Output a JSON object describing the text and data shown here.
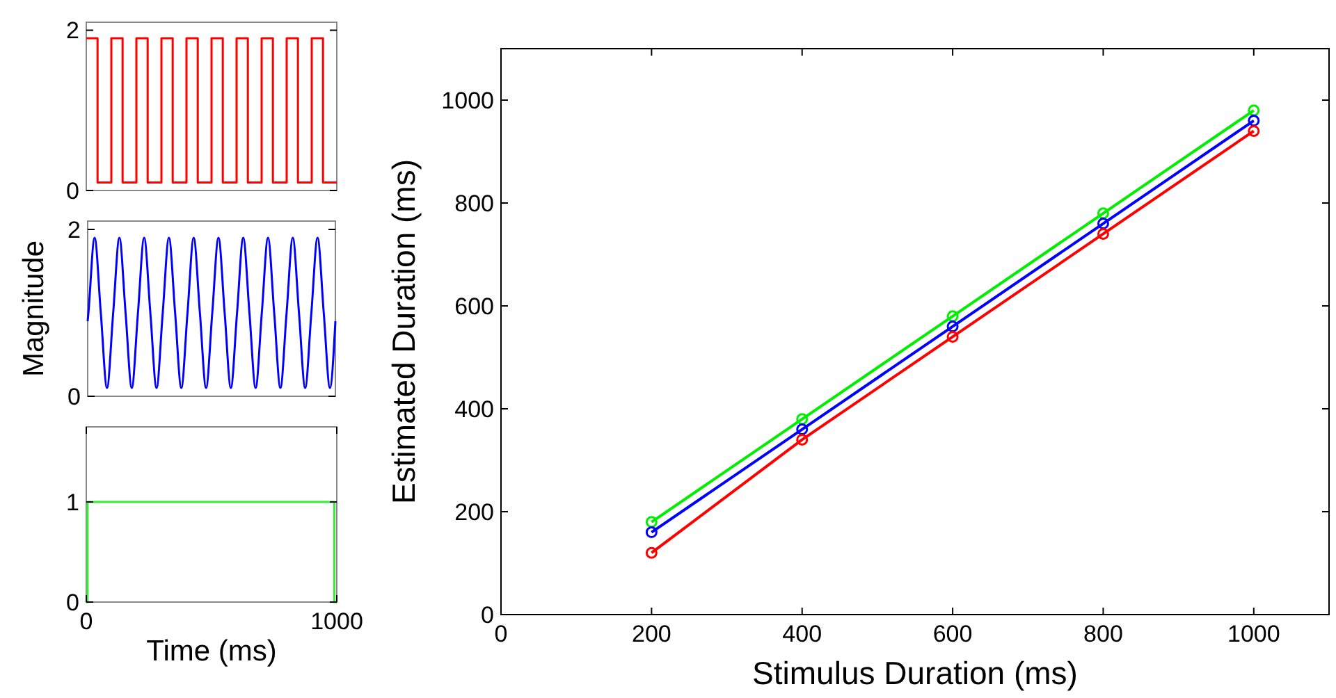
{
  "chart_data": [
    {
      "type": "step",
      "xlim": [
        0,
        1000
      ],
      "ylim": [
        0,
        2.1
      ],
      "yticks": [
        0,
        2
      ],
      "tick_labels": "y",
      "series": [
        {
          "color": "#ff0000",
          "x": [
            0,
            45,
            100,
            145,
            200,
            245,
            300,
            345,
            400,
            445,
            500,
            545,
            600,
            645,
            700,
            745,
            800,
            845,
            900,
            945,
            1000
          ],
          "values": [
            1.9,
            0.1,
            1.9,
            0.1,
            1.9,
            0.1,
            1.9,
            0.1,
            1.9,
            0.1,
            1.9,
            0.1,
            1.9,
            0.1,
            1.9,
            0.1,
            1.9,
            0.1,
            1.9,
            0.1,
            0.1
          ]
        }
      ]
    },
    {
      "type": "line",
      "xlim": [
        0,
        1000
      ],
      "ylim": [
        0,
        2.1
      ],
      "yticks": [
        0,
        2
      ],
      "tick_labels": "y",
      "ylabel": "Magnitude",
      "series": [
        {
          "color": "#0000ff",
          "x": [
            0,
            3,
            28,
            53,
            78,
            103,
            128,
            153,
            178,
            203,
            228,
            253,
            278,
            303,
            328,
            353,
            378,
            403,
            428,
            453,
            478,
            503,
            528,
            553,
            578,
            603,
            628,
            653,
            678,
            703,
            728,
            753,
            778,
            803,
            828,
            853,
            878,
            903,
            928,
            953,
            978,
            1000
          ],
          "values": [
            0.9,
            1,
            1.9,
            1,
            0.1,
            1,
            1.9,
            1,
            0.1,
            1,
            1.9,
            1,
            0.1,
            1,
            1.9,
            1,
            0.1,
            1,
            1.9,
            1,
            0.1,
            1,
            1.9,
            1,
            0.1,
            1,
            1.9,
            1,
            0.1,
            1,
            1.9,
            1,
            0.1,
            1,
            1.9,
            1,
            0.1,
            1,
            1.9,
            1,
            0.1,
            0.9
          ]
        }
      ]
    },
    {
      "type": "step",
      "xlim": [
        0,
        1000
      ],
      "xticks": [
        0,
        1000
      ],
      "ylim": [
        0,
        1.75
      ],
      "yticks": [
        0,
        1
      ],
      "xlabel": "Time (ms)",
      "series": [
        {
          "color": "#33ee33",
          "x": [
            0,
            5,
            990,
            1000
          ],
          "values": [
            0,
            1,
            0,
            0
          ]
        }
      ]
    },
    {
      "type": "line",
      "marker": "circle",
      "xlim": [
        0,
        1100
      ],
      "xticks": [
        0,
        200,
        400,
        600,
        800,
        1000
      ],
      "ylim": [
        0,
        1100
      ],
      "yticks": [
        0,
        200,
        400,
        600,
        800,
        1000
      ],
      "xlabel": "Stimulus Duration (ms)",
      "ylabel": "Estimated Duration (ms)",
      "x": [
        200,
        400,
        600,
        800,
        1000
      ],
      "series": [
        {
          "color": "#00ee00",
          "values": [
            180,
            380,
            580,
            780,
            980
          ]
        },
        {
          "color": "#0000ff",
          "values": [
            160,
            360,
            560,
            760,
            960
          ]
        },
        {
          "color": "#ff0000",
          "values": [
            120,
            340,
            540,
            740,
            940
          ]
        }
      ]
    }
  ]
}
